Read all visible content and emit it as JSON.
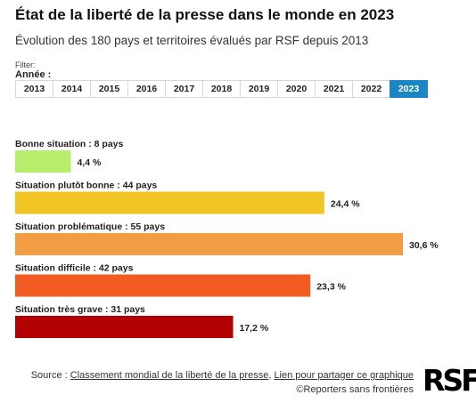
{
  "header": {
    "title": "État de la liberté de la presse dans le monde en 2023",
    "subtitle": "Évolution des 180 pays et territoires évalués par RSF depuis 2013"
  },
  "filter": {
    "label": "Filter:",
    "year_label": "Année :",
    "years": [
      "2013",
      "2014",
      "2015",
      "2016",
      "2017",
      "2018",
      "2019",
      "2020",
      "2021",
      "2022",
      "2023"
    ],
    "selected": "2023",
    "active_color": "#1a86c3"
  },
  "chart_data": {
    "type": "bar",
    "orientation": "horizontal",
    "categories": [
      "Bonne situation : 8 pays",
      "Situation plutôt bonne : 44 pays",
      "Situation problématique : 55 pays",
      "Situation difficile : 42 pays",
      "Situation très grave : 31 pays"
    ],
    "values": [
      4.4,
      24.4,
      30.6,
      23.3,
      17.2
    ],
    "value_labels": [
      "4,4 %",
      "24,4 %",
      "30,6 %",
      "23,3 %",
      "17,2 %"
    ],
    "colors": [
      "#b8ed6b",
      "#f1c624",
      "#f29c44",
      "#f25b22",
      "#b30000"
    ],
    "xlim": [
      0,
      30.6
    ]
  },
  "footer": {
    "source_prefix": "Source : ",
    "source_link": "Classement mondial de la liberté de la presse",
    "separator": ", ",
    "share_link": "Lien pour partager ce graphique",
    "copyright": "©Reporters sans frontières",
    "logo": "RSF"
  }
}
